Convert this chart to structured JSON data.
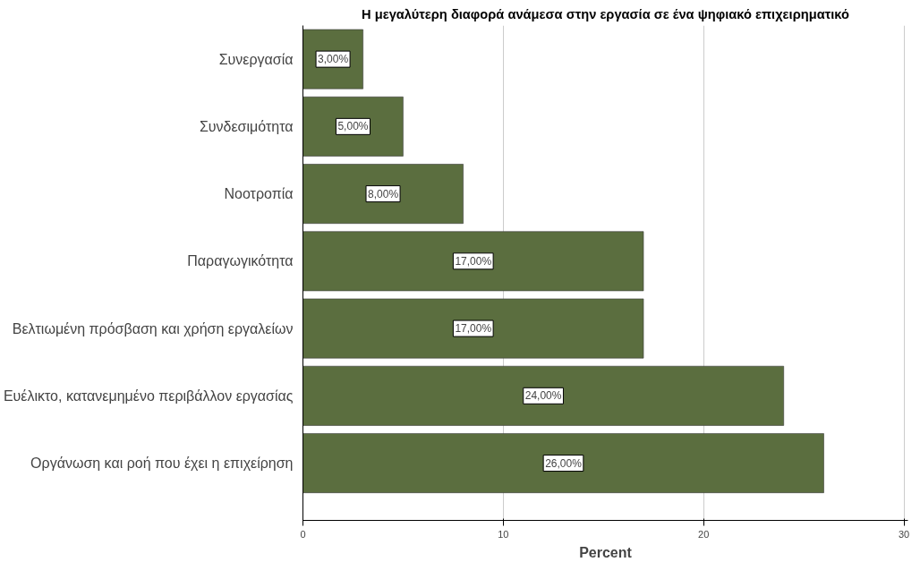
{
  "chart_data": {
    "type": "bar",
    "orientation": "horizontal",
    "title": "Η μεγαλύτερη διαφορά ανάμεσα στην εργασία σε ένα ψηφιακό επιχειρηματικό",
    "xlabel": "Percent",
    "categories": [
      "Συνεργασία",
      "Συνδεσιμότητα",
      "Νοοτροπία",
      "Παραγωγικότητα",
      "Βελτιωμένη πρόσβαση και χρήση εργαλείων",
      "Ευέλικτο, κατανεμημένο περιβάλλον εργασίας",
      "Οργάνωση και ροή που έχει η επιχείρηση"
    ],
    "values": [
      3,
      5,
      8,
      17,
      17,
      24,
      26
    ],
    "value_labels": [
      "3,00%",
      "5,00%",
      "8,00%",
      "17,00%",
      "17,00%",
      "24,00%",
      "26,00%"
    ],
    "color": "#5b6e3f",
    "xlim": [
      0,
      30.2
    ],
    "xticks": [
      0,
      10,
      20,
      30
    ],
    "grid": "x"
  }
}
